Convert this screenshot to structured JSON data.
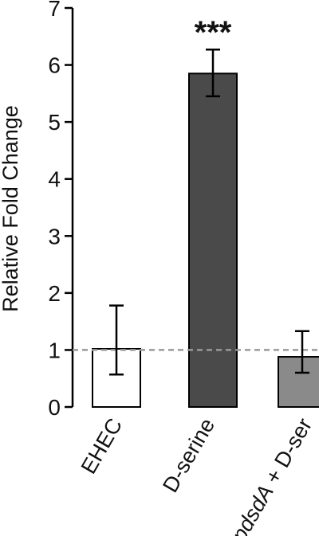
{
  "chart_data": {
    "type": "bar",
    "title": "",
    "xlabel": "",
    "ylabel": "Relative Fold Change",
    "ylim": [
      0,
      7
    ],
    "yticks": [
      0,
      1,
      2,
      3,
      4,
      5,
      6,
      7
    ],
    "categories": [
      {
        "parts": [
          {
            "text": "EHEC",
            "italic": false
          }
        ]
      },
      {
        "parts": [
          {
            "text": "D-serine",
            "italic": false
          }
        ]
      },
      {
        "parts": [
          {
            "text": "pdsdA",
            "italic": true
          },
          {
            "text": " + D-ser",
            "italic": false
          }
        ]
      }
    ],
    "values": [
      1.02,
      5.85,
      0.88
    ],
    "error_low": [
      0.57,
      5.45,
      0.6
    ],
    "error_high": [
      1.78,
      6.27,
      1.33
    ],
    "bar_colors": [
      "#ffffff",
      "#4a4a4a",
      "#8a8a8a"
    ],
    "bar_stroke": "#000000",
    "significance": [
      "",
      "***",
      ""
    ],
    "reference_line": 1.0,
    "reference_line_color": "#9a9a9a",
    "grid": false,
    "legend": "none"
  }
}
